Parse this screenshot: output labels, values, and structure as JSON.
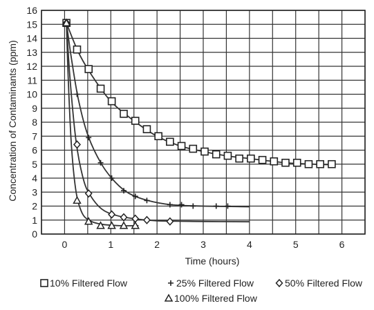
{
  "chart_data": {
    "type": "line",
    "xlabel": "Time (hours)",
    "ylabel": "Concentration of Contaminants (ppm)",
    "xlim": [
      -0.5,
      6.5
    ],
    "ylim": [
      0,
      16
    ],
    "x_ticks": [
      0,
      1,
      2,
      3,
      4,
      5,
      6
    ],
    "y_ticks": [
      0,
      1,
      2,
      3,
      4,
      5,
      6,
      7,
      8,
      9,
      10,
      11,
      12,
      13,
      14,
      15,
      16
    ],
    "grid": true,
    "legend_position": "bottom",
    "series": [
      {
        "name": "10% Filtered Flow",
        "marker": "square",
        "points": [
          [
            0.04,
            15.1
          ],
          [
            0.27,
            13.2
          ],
          [
            0.52,
            11.8
          ],
          [
            0.78,
            10.4
          ],
          [
            1.02,
            9.5
          ],
          [
            1.28,
            8.6
          ],
          [
            1.53,
            8.1
          ],
          [
            1.78,
            7.5
          ],
          [
            2.03,
            7.0
          ],
          [
            2.28,
            6.6
          ],
          [
            2.53,
            6.3
          ],
          [
            2.78,
            6.1
          ],
          [
            3.03,
            5.9
          ],
          [
            3.28,
            5.7
          ],
          [
            3.53,
            5.6
          ],
          [
            3.78,
            5.4
          ],
          [
            4.03,
            5.4
          ],
          [
            4.28,
            5.3
          ],
          [
            4.53,
            5.2
          ],
          [
            4.78,
            5.1
          ],
          [
            5.03,
            5.1
          ],
          [
            5.28,
            5.0
          ],
          [
            5.53,
            5.0
          ],
          [
            5.78,
            5.0
          ]
        ],
        "curve": [
          [
            0.04,
            15.1
          ],
          [
            0.3,
            13.0
          ],
          [
            0.6,
            11.3
          ],
          [
            1.0,
            9.5
          ],
          [
            1.5,
            8.1
          ],
          [
            2.0,
            7.0
          ],
          [
            2.5,
            6.3
          ],
          [
            3.0,
            5.9
          ],
          [
            3.5,
            5.6
          ],
          [
            4.0,
            5.4
          ],
          [
            4.5,
            5.2
          ],
          [
            5.0,
            5.05
          ],
          [
            5.8,
            4.95
          ]
        ]
      },
      {
        "name": "25% Filtered Flow",
        "marker": "plus",
        "points": [
          [
            0.04,
            15.1
          ],
          [
            0.27,
            10.0
          ],
          [
            0.52,
            6.9
          ],
          [
            0.78,
            5.1
          ],
          [
            1.02,
            4.0
          ],
          [
            1.28,
            3.1
          ],
          [
            1.53,
            2.7
          ],
          [
            1.78,
            2.4
          ],
          [
            2.28,
            2.1
          ],
          [
            2.53,
            2.1
          ],
          [
            2.78,
            2.0
          ],
          [
            3.28,
            2.0
          ],
          [
            3.53,
            2.0
          ]
        ],
        "curve": [
          [
            0.04,
            15.1
          ],
          [
            0.15,
            12.5
          ],
          [
            0.3,
            9.6
          ],
          [
            0.5,
            7.1
          ],
          [
            0.8,
            5.0
          ],
          [
            1.1,
            3.7
          ],
          [
            1.4,
            2.9
          ],
          [
            1.8,
            2.4
          ],
          [
            2.3,
            2.1
          ],
          [
            3.0,
            2.0
          ],
          [
            4.0,
            1.95
          ]
        ]
      },
      {
        "name": "50% Filtered Flow",
        "marker": "diamond",
        "points": [
          [
            0.04,
            15.1
          ],
          [
            0.27,
            6.4
          ],
          [
            0.52,
            2.9
          ],
          [
            1.02,
            1.4
          ],
          [
            1.28,
            1.2
          ],
          [
            1.53,
            1.1
          ],
          [
            1.78,
            1.0
          ],
          [
            2.28,
            0.9
          ]
        ],
        "curve": [
          [
            0.04,
            15.1
          ],
          [
            0.12,
            11.0
          ],
          [
            0.25,
            6.6
          ],
          [
            0.4,
            4.0
          ],
          [
            0.55,
            2.8
          ],
          [
            0.8,
            1.8
          ],
          [
            1.1,
            1.35
          ],
          [
            1.5,
            1.1
          ],
          [
            2.0,
            0.95
          ],
          [
            3.0,
            0.9
          ],
          [
            4.0,
            0.88
          ]
        ]
      },
      {
        "name": "100% Filtered Flow",
        "marker": "triangle",
        "points": [
          [
            0.04,
            15.1
          ],
          [
            0.27,
            2.4
          ],
          [
            0.52,
            0.9
          ],
          [
            0.78,
            0.6
          ],
          [
            1.02,
            0.6
          ],
          [
            1.28,
            0.6
          ],
          [
            1.53,
            0.6
          ]
        ],
        "curve": [
          [
            0.04,
            15.1
          ],
          [
            0.08,
            11.0
          ],
          [
            0.15,
            6.2
          ],
          [
            0.25,
            3.0
          ],
          [
            0.38,
            1.5
          ],
          [
            0.55,
            0.95
          ],
          [
            0.8,
            0.7
          ],
          [
            1.2,
            0.6
          ],
          [
            1.6,
            0.6
          ]
        ]
      }
    ]
  }
}
